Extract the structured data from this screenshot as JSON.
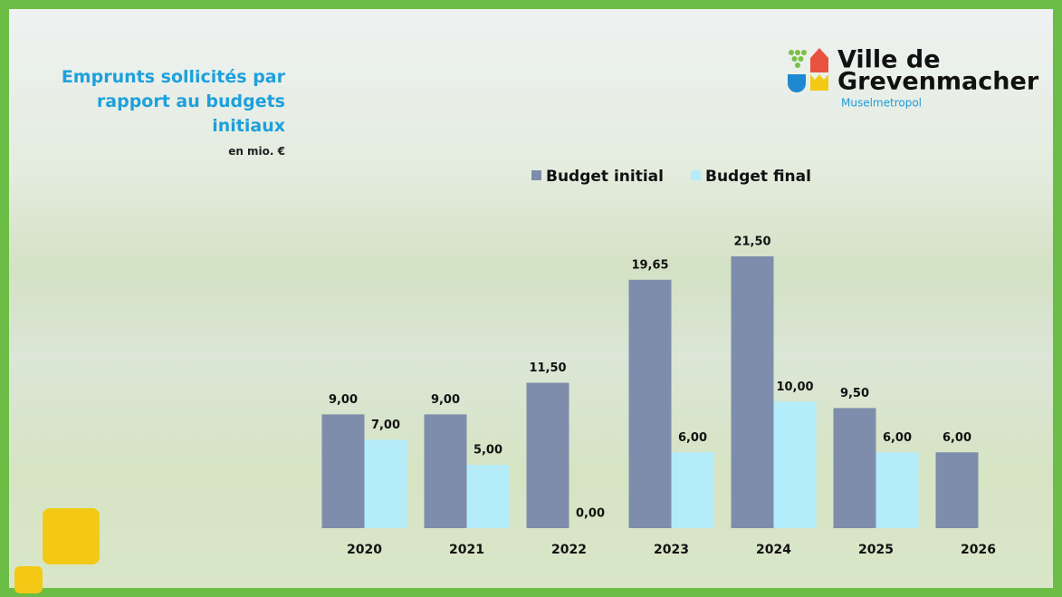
{
  "chart_data": {
    "type": "bar",
    "title": "Emprunts sollicités par rapport au budgets initiaux",
    "subtitle": "en mio. €",
    "categories": [
      "2020",
      "2021",
      "2022",
      "2023",
      "2024",
      "2025",
      "2026"
    ],
    "series": [
      {
        "name": "Budget initial",
        "color": "#7d8dab",
        "values": [
          9,
          9,
          11.5,
          19.65,
          21.5,
          9.5,
          6
        ],
        "value_labels": [
          "9,00",
          "9,00",
          "11,50",
          "19,65",
          "21,50",
          "9,50",
          "6,00"
        ]
      },
      {
        "name": "Budget final",
        "color": "#b5ecfa",
        "values": [
          7,
          5,
          0,
          6,
          10,
          6,
          null
        ],
        "value_labels": [
          "7,00",
          "5,00",
          "0,00",
          "6,00",
          "10,00",
          "6,00",
          null
        ]
      }
    ]
  },
  "logo": {
    "line1": "Ville de",
    "line2": "Grevenmacher",
    "tagline": "Muselmetropol"
  }
}
